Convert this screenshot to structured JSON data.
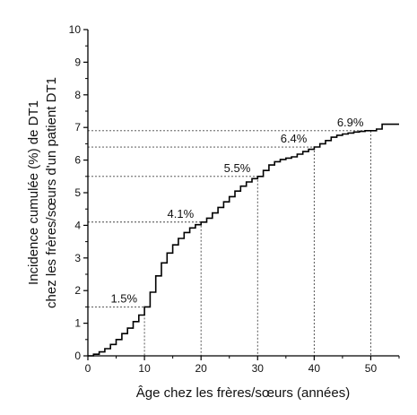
{
  "chart_data": {
    "type": "line",
    "title": "",
    "xlabel": "Âge chez les frères/sœurs (années)",
    "ylabel": [
      "Incidence cumulée (%) de DT1",
      "chez les frères/sœurs d'un patient DT1"
    ],
    "xlim": [
      0,
      55
    ],
    "ylim": [
      0,
      10
    ],
    "xticks": [
      "0",
      "10",
      "20",
      "30",
      "40",
      "50"
    ],
    "yticks": [
      "0",
      "1",
      "2",
      "3",
      "4",
      "5",
      "6",
      "7",
      "8",
      "9",
      "10"
    ],
    "grid": false,
    "series": [
      {
        "x": [
          0,
          1,
          2,
          3,
          4,
          5,
          6,
          7,
          8,
          9,
          10,
          11,
          12,
          13,
          14,
          15,
          16,
          17,
          18,
          19,
          20,
          21,
          22,
          23,
          24,
          25,
          26,
          27,
          28,
          29,
          30,
          31,
          32,
          33,
          34,
          35,
          36,
          37,
          38,
          39,
          40,
          41,
          42,
          43,
          44,
          45,
          46,
          47,
          48,
          49,
          50,
          51,
          52,
          53,
          55
        ],
        "y": [
          0,
          0.05,
          0.12,
          0.22,
          0.35,
          0.5,
          0.68,
          0.85,
          1.05,
          1.25,
          1.5,
          1.95,
          2.45,
          2.85,
          3.15,
          3.4,
          3.6,
          3.78,
          3.92,
          4.02,
          4.1,
          4.22,
          4.38,
          4.55,
          4.72,
          4.88,
          5.05,
          5.2,
          5.33,
          5.43,
          5.5,
          5.68,
          5.85,
          5.95,
          6.02,
          6.06,
          6.1,
          6.18,
          6.26,
          6.33,
          6.4,
          6.5,
          6.6,
          6.7,
          6.76,
          6.8,
          6.83,
          6.86,
          6.88,
          6.9,
          6.9,
          6.95,
          7.1,
          7.1,
          7.1
        ]
      }
    ],
    "annotations": [
      {
        "x": 10,
        "y": 1.5,
        "label": "1.5%"
      },
      {
        "x": 20,
        "y": 4.1,
        "label": "4.1%"
      },
      {
        "x": 30,
        "y": 5.5,
        "label": "5.5%"
      },
      {
        "x": 40,
        "y": 6.4,
        "label": "6.4%"
      },
      {
        "x": 50,
        "y": 6.9,
        "label": "6.9%"
      }
    ]
  }
}
